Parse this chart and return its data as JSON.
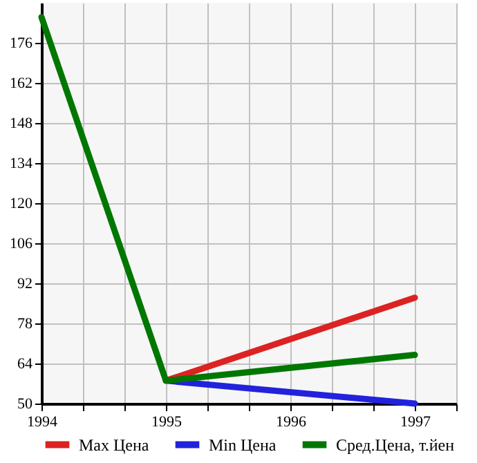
{
  "chart_data": {
    "type": "line",
    "x": [
      1994,
      1995,
      1997
    ],
    "series": [
      {
        "name": "Max Цена",
        "color": "#dd2222",
        "values": [
          null,
          58,
          87
        ]
      },
      {
        "name": "Min Цена",
        "color": "#2222dd",
        "values": [
          null,
          58,
          50
        ]
      },
      {
        "name": "Сред.Цена, т.йен",
        "color": "#007700",
        "values": [
          185,
          58,
          67
        ]
      }
    ],
    "xlim": [
      1994,
      1997.333
    ],
    "xticks": [
      1994,
      {
        "value": 1994.333,
        "label": null
      },
      {
        "value": 1994.667,
        "label": null
      },
      1995,
      {
        "value": 1995.333,
        "label": null
      },
      {
        "value": 1995.667,
        "label": null
      },
      1996,
      {
        "value": 1996.333,
        "label": null
      },
      {
        "value": 1996.667,
        "label": null
      },
      1997,
      {
        "value": 1997.333,
        "label": null
      }
    ],
    "ylim": [
      50,
      190
    ],
    "yticks": [
      50,
      64,
      78,
      92,
      106,
      120,
      134,
      148,
      162,
      176
    ],
    "grid": true,
    "legend": "bottom",
    "marker": "none",
    "line_style": "solid"
  }
}
